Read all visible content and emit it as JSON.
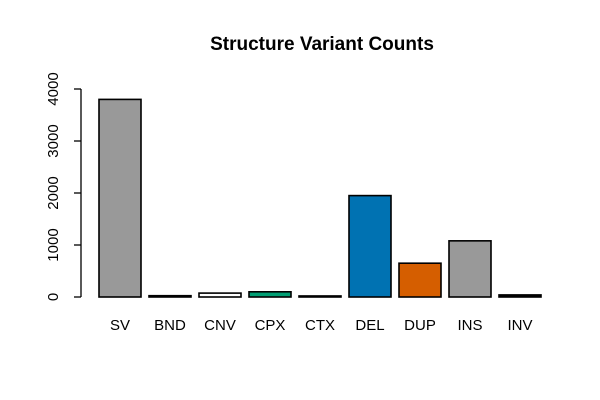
{
  "chart_data": {
    "type": "bar",
    "title": "Structure Variant Counts",
    "categories": [
      "SV",
      "BND",
      "CNV",
      "CPX",
      "CTX",
      "DEL",
      "DUP",
      "INS",
      "INV"
    ],
    "values": [
      3800,
      25,
      75,
      100,
      20,
      1950,
      650,
      1080,
      40
    ],
    "bar_colors": [
      "#999999",
      "#999999",
      "#ffffff",
      "#009E73",
      "#999999",
      "#0072B2",
      "#D55E00",
      "#999999",
      "#000000"
    ],
    "bar_border_color": "#000000",
    "xlabel": "",
    "ylabel": "",
    "ylim": [
      0,
      4000
    ],
    "yticks": [
      0,
      1000,
      2000,
      3000,
      4000
    ],
    "grid": false,
    "legend": "none",
    "y_tick_label_orientation": "vertical",
    "background_color": "#ffffff"
  }
}
